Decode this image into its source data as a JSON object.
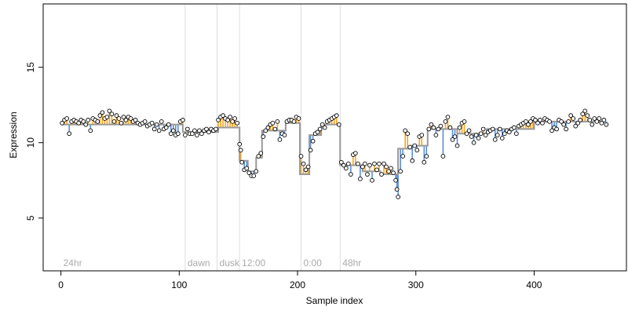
{
  "chart_data": {
    "type": "scatter",
    "title": "",
    "xlabel": "Sample index",
    "ylabel": "Expression",
    "xlim": [
      -15,
      478
    ],
    "ylim": [
      1.5,
      19.2
    ],
    "x_ticks": [
      0,
      100,
      200,
      300,
      400
    ],
    "y_ticks": [
      5,
      10,
      15
    ],
    "grid": false,
    "legend": "none",
    "colors": {
      "point_fill": "#ffffff",
      "point_stroke": "#000000",
      "fit_line": "#999999",
      "above_fit": "#f5a623",
      "below_fit": "#5b8fd6",
      "vline": "#dddddd",
      "section_text": "#aaaaaa"
    },
    "sections": [
      {
        "x": 0,
        "label": "24hr"
      },
      {
        "x": 105,
        "label": "dawn"
      },
      {
        "x": 132,
        "label": "dusk"
      },
      {
        "x": 151,
        "label": "12:00"
      },
      {
        "x": 203,
        "label": "0:00"
      },
      {
        "x": 236,
        "label": "48hr"
      }
    ],
    "fit_segments": [
      {
        "x0": 0,
        "x1": 103,
        "y": 11.2
      },
      {
        "x0": 103,
        "x1": 133,
        "y": 10.7
      },
      {
        "x0": 133,
        "x1": 151,
        "y": 11.0
      },
      {
        "x0": 151,
        "x1": 158,
        "y": 8.8
      },
      {
        "x0": 158,
        "x1": 165,
        "y": 8.1
      },
      {
        "x0": 165,
        "x1": 170,
        "y": 9.0
      },
      {
        "x0": 170,
        "x1": 190,
        "y": 10.8
      },
      {
        "x0": 190,
        "x1": 202,
        "y": 11.3
      },
      {
        "x0": 202,
        "x1": 210,
        "y": 7.9
      },
      {
        "x0": 210,
        "x1": 220,
        "y": 10.5
      },
      {
        "x0": 220,
        "x1": 236,
        "y": 11.2
      },
      {
        "x0": 236,
        "x1": 255,
        "y": 8.5
      },
      {
        "x0": 255,
        "x1": 270,
        "y": 8.1
      },
      {
        "x0": 270,
        "x1": 285,
        "y": 7.9
      },
      {
        "x0": 285,
        "x1": 296,
        "y": 9.6
      },
      {
        "x0": 296,
        "x1": 310,
        "y": 9.8
      },
      {
        "x0": 310,
        "x1": 335,
        "y": 10.9
      },
      {
        "x0": 335,
        "x1": 360,
        "y": 10.6
      },
      {
        "x0": 360,
        "x1": 400,
        "y": 10.9
      },
      {
        "x0": 400,
        "x1": 460,
        "y": 11.4
      }
    ],
    "points": [
      [
        1,
        11.3
      ],
      [
        3,
        11.5
      ],
      [
        5,
        11.6
      ],
      [
        7,
        10.6
      ],
      [
        9,
        11.4
      ],
      [
        11,
        11.5
      ],
      [
        13,
        11.4
      ],
      [
        15,
        11.3
      ],
      [
        17,
        11.5
      ],
      [
        19,
        11.4
      ],
      [
        21,
        11.2
      ],
      [
        23,
        11.5
      ],
      [
        25,
        10.8
      ],
      [
        27,
        11.6
      ],
      [
        29,
        11.5
      ],
      [
        31,
        11.4
      ],
      [
        33,
        11.8
      ],
      [
        35,
        12.0
      ],
      [
        37,
        11.6
      ],
      [
        39,
        11.7
      ],
      [
        41,
        12.1
      ],
      [
        43,
        11.9
      ],
      [
        45,
        11.4
      ],
      [
        47,
        11.8
      ],
      [
        49,
        11.6
      ],
      [
        51,
        11.3
      ],
      [
        53,
        11.7
      ],
      [
        55,
        11.5
      ],
      [
        57,
        11.7
      ],
      [
        59,
        11.6
      ],
      [
        61,
        11.4
      ],
      [
        63,
        11.5
      ],
      [
        65,
        11.3
      ],
      [
        67,
        11.2
      ],
      [
        69,
        11.3
      ],
      [
        71,
        11.4
      ],
      [
        73,
        11.1
      ],
      [
        75,
        11.2
      ],
      [
        77,
        11.3
      ],
      [
        79,
        10.9
      ],
      [
        81,
        11.2
      ],
      [
        83,
        10.8
      ],
      [
        85,
        11.4
      ],
      [
        87,
        10.9
      ],
      [
        89,
        11.0
      ],
      [
        91,
        11.2
      ],
      [
        93,
        10.6
      ],
      [
        95,
        10.8
      ],
      [
        97,
        10.5
      ],
      [
        99,
        10.6
      ],
      [
        101,
        11.4
      ],
      [
        103,
        11.5
      ],
      [
        105,
        10.5
      ],
      [
        107,
        10.9
      ],
      [
        109,
        10.6
      ],
      [
        111,
        10.6
      ],
      [
        113,
        10.8
      ],
      [
        115,
        10.5
      ],
      [
        117,
        10.8
      ],
      [
        119,
        10.6
      ],
      [
        121,
        10.8
      ],
      [
        123,
        10.9
      ],
      [
        125,
        10.7
      ],
      [
        127,
        10.9
      ],
      [
        129,
        10.8
      ],
      [
        131,
        10.9
      ],
      [
        133,
        11.5
      ],
      [
        135,
        11.7
      ],
      [
        137,
        11.8
      ],
      [
        139,
        11.6
      ],
      [
        141,
        11.5
      ],
      [
        143,
        11.7
      ],
      [
        145,
        11.4
      ],
      [
        147,
        11.6
      ],
      [
        149,
        11.3
      ],
      [
        151,
        9.9
      ],
      [
        152,
        9.5
      ],
      [
        153,
        8.7
      ],
      [
        155,
        8.2
      ],
      [
        157,
        8.3
      ],
      [
        159,
        8.0
      ],
      [
        161,
        7.8
      ],
      [
        163,
        7.8
      ],
      [
        165,
        8.1
      ],
      [
        167,
        9.1
      ],
      [
        169,
        9.3
      ],
      [
        171,
        10.4
      ],
      [
        173,
        10.8
      ],
      [
        175,
        11.0
      ],
      [
        177,
        11.2
      ],
      [
        179,
        11.3
      ],
      [
        181,
        10.9
      ],
      [
        183,
        11.4
      ],
      [
        185,
        10.2
      ],
      [
        187,
        10.6
      ],
      [
        189,
        10.5
      ],
      [
        191,
        11.4
      ],
      [
        193,
        11.5
      ],
      [
        195,
        11.5
      ],
      [
        197,
        11.4
      ],
      [
        199,
        11.7
      ],
      [
        201,
        11.6
      ],
      [
        203,
        9.1
      ],
      [
        205,
        8.6
      ],
      [
        207,
        8.2
      ],
      [
        209,
        8.4
      ],
      [
        211,
        9.5
      ],
      [
        213,
        10.1
      ],
      [
        215,
        10.6
      ],
      [
        217,
        10.7
      ],
      [
        219,
        10.9
      ],
      [
        221,
        11.2
      ],
      [
        223,
        11.0
      ],
      [
        225,
        11.4
      ],
      [
        227,
        11.5
      ],
      [
        229,
        11.6
      ],
      [
        231,
        11.7
      ],
      [
        233,
        11.8
      ],
      [
        235,
        11.2
      ],
      [
        237,
        8.7
      ],
      [
        239,
        8.5
      ],
      [
        241,
        8.3
      ],
      [
        243,
        8.6
      ],
      [
        245,
        7.9
      ],
      [
        247,
        9.2
      ],
      [
        249,
        9.3
      ],
      [
        251,
        8.6
      ],
      [
        253,
        7.6
      ],
      [
        255,
        8.4
      ],
      [
        257,
        8.6
      ],
      [
        259,
        7.9
      ],
      [
        261,
        8.5
      ],
      [
        263,
        7.5
      ],
      [
        265,
        8.6
      ],
      [
        267,
        8.2
      ],
      [
        269,
        8.6
      ],
      [
        271,
        7.9
      ],
      [
        273,
        8.6
      ],
      [
        275,
        8.4
      ],
      [
        277,
        8.1
      ],
      [
        279,
        8.3
      ],
      [
        281,
        8.0
      ],
      [
        283,
        7.5
      ],
      [
        284,
        6.9
      ],
      [
        285,
        6.4
      ],
      [
        287,
        8.1
      ],
      [
        289,
        9.1
      ],
      [
        291,
        10.8
      ],
      [
        293,
        10.6
      ],
      [
        295,
        9.7
      ],
      [
        297,
        8.8
      ],
      [
        299,
        9.8
      ],
      [
        301,
        9.5
      ],
      [
        303,
        10.4
      ],
      [
        305,
        10.5
      ],
      [
        307,
        8.7
      ],
      [
        309,
        9.1
      ],
      [
        311,
        10.9
      ],
      [
        313,
        11.2
      ],
      [
        315,
        11.0
      ],
      [
        317,
        10.5
      ],
      [
        319,
        10.9
      ],
      [
        321,
        11.1
      ],
      [
        323,
        9.1
      ],
      [
        325,
        11.4
      ],
      [
        327,
        11.7
      ],
      [
        329,
        11.0
      ],
      [
        331,
        10.2
      ],
      [
        333,
        10.4
      ],
      [
        335,
        9.8
      ],
      [
        337,
        11.0
      ],
      [
        339,
        11.3
      ],
      [
        341,
        11.4
      ],
      [
        343,
        10.6
      ],
      [
        345,
        10.8
      ],
      [
        347,
        10.4
      ],
      [
        349,
        10.0
      ],
      [
        351,
        10.5
      ],
      [
        353,
        10.3
      ],
      [
        355,
        10.6
      ],
      [
        357,
        10.9
      ],
      [
        359,
        10.5
      ],
      [
        361,
        10.7
      ],
      [
        363,
        10.8
      ],
      [
        365,
        10.9
      ],
      [
        367,
        10.2
      ],
      [
        369,
        10.5
      ],
      [
        371,
        10.9
      ],
      [
        373,
        10.3
      ],
      [
        375,
        10.6
      ],
      [
        377,
        10.8
      ],
      [
        379,
        10.7
      ],
      [
        381,
        10.9
      ],
      [
        383,
        11.0
      ],
      [
        385,
        10.6
      ],
      [
        387,
        11.1
      ],
      [
        389,
        11.2
      ],
      [
        391,
        11.3
      ],
      [
        393,
        11.4
      ],
      [
        395,
        11.2
      ],
      [
        397,
        11.4
      ],
      [
        399,
        11.6
      ],
      [
        401,
        11.5
      ],
      [
        403,
        11.3
      ],
      [
        405,
        11.5
      ],
      [
        407,
        11.3
      ],
      [
        409,
        11.6
      ],
      [
        411,
        11.5
      ],
      [
        413,
        11.4
      ],
      [
        415,
        10.8
      ],
      [
        417,
        11.0
      ],
      [
        419,
        10.9
      ],
      [
        421,
        11.5
      ],
      [
        423,
        11.4
      ],
      [
        425,
        11.2
      ],
      [
        427,
        10.9
      ],
      [
        429,
        11.4
      ],
      [
        431,
        11.8
      ],
      [
        433,
        11.6
      ],
      [
        435,
        11.1
      ],
      [
        437,
        11.3
      ],
      [
        439,
        11.5
      ],
      [
        441,
        11.9
      ],
      [
        443,
        12.1
      ],
      [
        445,
        11.8
      ],
      [
        447,
        11.5
      ],
      [
        449,
        11.2
      ],
      [
        451,
        11.6
      ],
      [
        453,
        11.4
      ],
      [
        455,
        11.6
      ],
      [
        457,
        11.3
      ],
      [
        459,
        11.5
      ],
      [
        461,
        11.2
      ]
    ]
  }
}
